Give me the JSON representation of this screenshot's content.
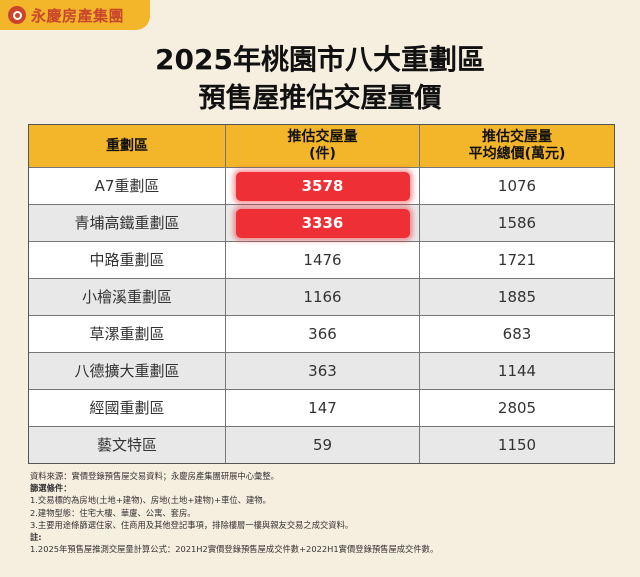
{
  "brand": {
    "name": "永慶房產集團",
    "color": "#c9462c",
    "bar_color": "#f3b52a",
    "icon": "logo-circle-icon"
  },
  "title": {
    "line1": "2025年桃園市八大重劃區",
    "line2": "預售屋推估交屋量價"
  },
  "table": {
    "headers": [
      {
        "line1": "重劃區",
        "line2": ""
      },
      {
        "line1": "推估交屋量",
        "line2": "(件)"
      },
      {
        "line1": "推估交屋量",
        "line2": "平均總價(萬元)"
      }
    ],
    "rows": [
      {
        "district": "A7重劃區",
        "volume": "3578",
        "price": "1076",
        "highlight": true
      },
      {
        "district": "青埔高鐵重劃區",
        "volume": "3336",
        "price": "1586",
        "highlight": true
      },
      {
        "district": "中路重劃區",
        "volume": "1476",
        "price": "1721",
        "highlight": false
      },
      {
        "district": "小檜溪重劃區",
        "volume": "1166",
        "price": "1885",
        "highlight": false
      },
      {
        "district": "草漯重劃區",
        "volume": "366",
        "price": "683",
        "highlight": false
      },
      {
        "district": "八德擴大重劃區",
        "volume": "363",
        "price": "1144",
        "highlight": false
      },
      {
        "district": "經國重劃區",
        "volume": "147",
        "price": "2805",
        "highlight": false
      },
      {
        "district": "藝文特區",
        "volume": "59",
        "price": "1150",
        "highlight": false
      }
    ],
    "highlight_color": "#ee2f36",
    "header_color": "#f3b52a"
  },
  "notes": {
    "source": "資料來源：實價登錄預售屋交易資料；永慶房產集團研展中心彙整。",
    "filter_title": "篩選條件：",
    "filters": [
      "1.交易標的為房地(土地+建物)、房地(土地+建物)+車位、建物。",
      "2.建物型態：住宅大樓、華廈、公寓、套房。",
      "3.主要用途條篩選住家、住商用及其他登記事項，排除樓層一樓與親友交易之成交資料。"
    ],
    "note_title": "註:",
    "note_items": [
      "1.2025年預售屋推測交屋量計算公式：2021H2實價登錄預售屋成交件數+2022H1實價登錄預售屋成交件數。"
    ]
  }
}
